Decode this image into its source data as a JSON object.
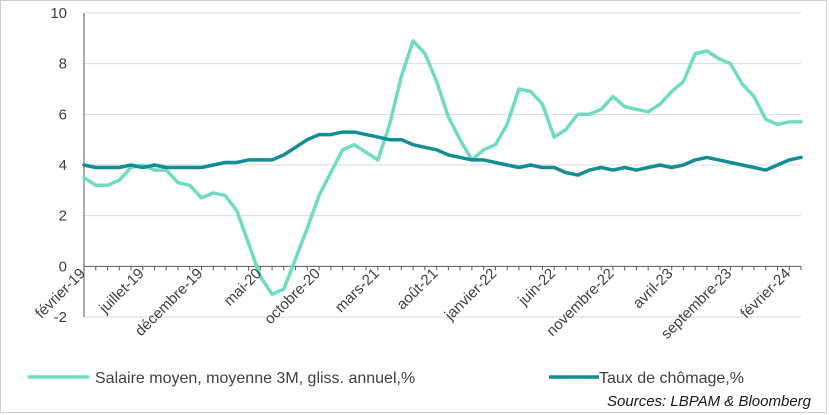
{
  "colors": {
    "salaire": "#6fdcc0",
    "chomage": "#138d94",
    "grid": "#d9d9d9",
    "axis": "#595959",
    "text": "#404040"
  },
  "chart_data": {
    "type": "line",
    "title": "",
    "xlabel": "",
    "ylabel": "",
    "ylim": [
      -2,
      10
    ],
    "yticks": [
      -2,
      0,
      2,
      4,
      6,
      8,
      10
    ],
    "x_tick_labels": [
      "février-19",
      "juillet-19",
      "décembre-19",
      "mai-20",
      "octobre-20",
      "mars-21",
      "août-21",
      "janvier-22",
      "juin-22",
      "novembre-22",
      "avril-23",
      "septembre-23",
      "février-24"
    ],
    "x_tick_every_months": 5,
    "grid": true,
    "legend_position": "bottom",
    "source": "Sources: LBPAM & Bloomberg",
    "series": [
      {
        "name": "Salaire moyen, moyenne 3M, gliss. annuel,%",
        "color_key": "salaire",
        "values": [
          3.5,
          3.2,
          3.2,
          3.4,
          3.9,
          4.0,
          3.8,
          3.8,
          3.3,
          3.2,
          2.7,
          2.9,
          2.8,
          2.2,
          0.9,
          -0.4,
          -1.1,
          -0.9,
          0.3,
          1.5,
          2.8,
          3.7,
          4.6,
          4.8,
          4.5,
          4.2,
          5.6,
          7.5,
          8.9,
          8.4,
          7.3,
          5.9,
          5.0,
          4.2,
          4.6,
          4.8,
          5.6,
          7.0,
          6.9,
          6.4,
          5.1,
          5.4,
          6.0,
          6.0,
          6.2,
          6.7,
          6.3,
          6.2,
          6.1,
          6.4,
          6.9,
          7.3,
          8.4,
          8.5,
          8.2,
          8.0,
          7.2,
          6.7,
          5.8,
          5.6,
          5.7,
          5.7
        ]
      },
      {
        "name": "Taux de chômage,%",
        "color_key": "chomage",
        "values": [
          4.0,
          3.9,
          3.9,
          3.9,
          4.0,
          3.9,
          4.0,
          3.9,
          3.9,
          3.9,
          3.9,
          4.0,
          4.1,
          4.1,
          4.2,
          4.2,
          4.2,
          4.4,
          4.7,
          5.0,
          5.2,
          5.2,
          5.3,
          5.3,
          5.2,
          5.1,
          5.0,
          5.0,
          4.8,
          4.7,
          4.6,
          4.4,
          4.3,
          4.2,
          4.2,
          4.1,
          4.0,
          3.9,
          4.0,
          3.9,
          3.9,
          3.7,
          3.6,
          3.8,
          3.9,
          3.8,
          3.9,
          3.8,
          3.9,
          4.0,
          3.9,
          4.0,
          4.2,
          4.3,
          4.2,
          4.1,
          4.0,
          3.9,
          3.8,
          4.0,
          4.2,
          4.3
        ]
      }
    ]
  }
}
